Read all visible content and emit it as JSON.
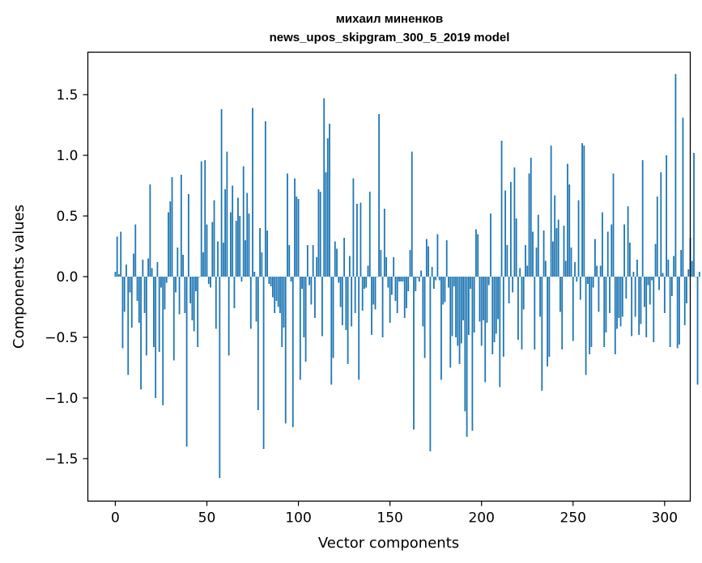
{
  "chart_data": {
    "type": "bar",
    "title_line1": "михаил миненков",
    "title_line2": "news_upos_skipgram_300_5_2019 model",
    "xlabel": "Vector components",
    "ylabel": "Components values",
    "xlim": [
      -15,
      314
    ],
    "ylim": [
      -1.85,
      1.85
    ],
    "xticks": [
      0,
      50,
      100,
      150,
      200,
      250,
      300
    ],
    "xtick_labels": [
      "0",
      "50",
      "100",
      "150",
      "200",
      "250",
      "300"
    ],
    "yticks": [
      -1.5,
      -1.0,
      -0.5,
      0.0,
      0.5,
      1.0,
      1.5
    ],
    "ytick_labels": [
      "−1.5",
      "−1.0",
      "−0.5",
      "0.0",
      "0.5",
      "1.0",
      "1.5"
    ],
    "bar_color": "#1f77b4",
    "grid": false,
    "values": [
      0.04,
      0.33,
      0.02,
      0.37,
      -0.59,
      -0.29,
      0.1,
      -0.81,
      -0.13,
      -0.42,
      0.19,
      0.43,
      -0.2,
      -0.38,
      -0.93,
      0.14,
      -0.3,
      -0.65,
      0.15,
      0.76,
      0.07,
      -0.58,
      -1.0,
      0.12,
      -0.62,
      -0.09,
      -1.06,
      -0.27,
      -0.05,
      0.53,
      0.62,
      0.82,
      -0.69,
      -0.13,
      0.24,
      -0.31,
      0.84,
      0.18,
      -0.3,
      -1.4,
      0.68,
      -0.22,
      -0.36,
      -0.45,
      -0.12,
      -0.58,
      0.0,
      0.95,
      0.2,
      0.96,
      0.43,
      -0.06,
      -0.09,
      0.45,
      0.63,
      -0.43,
      0.29,
      -1.66,
      1.38,
      0.28,
      0.72,
      1.03,
      -0.65,
      0.53,
      0.75,
      -0.26,
      0.46,
      0.65,
      0.5,
      -0.04,
      0.91,
      0.3,
      0.69,
      0.52,
      -0.43,
      1.39,
      0.04,
      -0.37,
      -1.1,
      0.4,
      0.2,
      -1.42,
      1.28,
      0.38,
      -0.06,
      -0.08,
      -0.17,
      -0.3,
      -0.2,
      -0.25,
      -0.3,
      -0.58,
      -0.42,
      -1.21,
      0.85,
      0.26,
      -0.04,
      -1.24,
      0.81,
      0.66,
      0.64,
      -0.85,
      -0.1,
      -0.5,
      -0.7,
      0.26,
      -0.07,
      -0.23,
      0.26,
      -0.34,
      0.16,
      0.72,
      0.7,
      -0.49,
      1.47,
      0.86,
      1.14,
      1.26,
      -0.89,
      -0.67,
      0.29,
      0.23,
      -0.05,
      -0.25,
      -0.4,
      0.32,
      -0.44,
      -0.72,
      0.17,
      -0.41,
      0.81,
      -0.3,
      0.6,
      -0.85,
      0.61,
      -0.28,
      -0.1,
      -0.09,
      0.09,
      0.7,
      -0.48,
      -0.23,
      -0.27,
      0.0,
      1.34,
      0.22,
      -0.5,
      0.56,
      0.16,
      -0.09,
      -0.38,
      -0.15,
      0.16,
      -0.2,
      -0.3,
      -0.04,
      -0.04,
      -0.04,
      -0.34,
      -0.26,
      -0.12,
      0.22,
      1.03,
      -1.26,
      -0.12,
      -0.01,
      -0.04,
      0.05,
      -0.41,
      -0.67,
      0.31,
      0.25,
      -1.44,
      0.08,
      -0.1,
      -0.03,
      0.35,
      -0.03,
      -0.85,
      -0.23,
      -0.21,
      0.3,
      -0.09,
      -0.75,
      -0.49,
      -0.08,
      -0.5,
      -0.57,
      -0.72,
      -0.55,
      -0.36,
      -1.11,
      -1.32,
      -0.48,
      -0.1,
      -1.27,
      -0.46,
      0.39,
      0.35,
      -0.37,
      -0.57,
      -0.36,
      -0.87,
      -0.38,
      -0.07,
      0.52,
      -0.64,
      -0.54,
      -0.47,
      -0.35,
      -0.91,
      1.12,
      -0.66,
      0.71,
      0.26,
      -0.22,
      0.78,
      -0.13,
      0.9,
      0.48,
      -0.52,
      0.07,
      -0.6,
      -0.27,
      0.26,
      0.09,
      0.85,
      0.98,
      0.37,
      -0.6,
      0.24,
      0.51,
      -0.33,
      -0.94,
      0.38,
      0.13,
      -0.74,
      -0.66,
      1.08,
      0.29,
      0.67,
      0.4,
      0.47,
      -0.29,
      -0.6,
      0.42,
      0.13,
      0.93,
      0.76,
      0.24,
      -0.53,
      0.12,
      -0.04,
      0.63,
      -0.19,
      1.1,
      1.08,
      -0.81,
      -0.06,
      -0.64,
      -0.58,
      -0.09,
      0.31,
      0.09,
      -0.29,
      0.09,
      0.53,
      -0.58,
      -0.46,
      0.37,
      -0.3,
      0.43,
      0.85,
      -0.64,
      -0.43,
      -0.34,
      -0.41,
      -0.33,
      0.43,
      -0.18,
      0.58,
      0.28,
      -0.49,
      0.04,
      -0.33,
      0.14,
      -0.48,
      -0.39,
      0.96,
      -0.25,
      -0.5,
      -0.07,
      -0.23,
      -0.03,
      -0.54,
      0.27,
      0.66,
      -0.11,
      0.86,
      0.03,
      -0.3,
      1.0,
      0.14,
      -0.58,
      -0.16,
      0.17,
      1.67,
      -0.59,
      -0.56,
      0.22,
      1.31,
      -0.4,
      -0.22,
      0.06,
      0.32,
      0.13,
      1.02,
      0.0,
      -0.89,
      0.04
    ]
  }
}
